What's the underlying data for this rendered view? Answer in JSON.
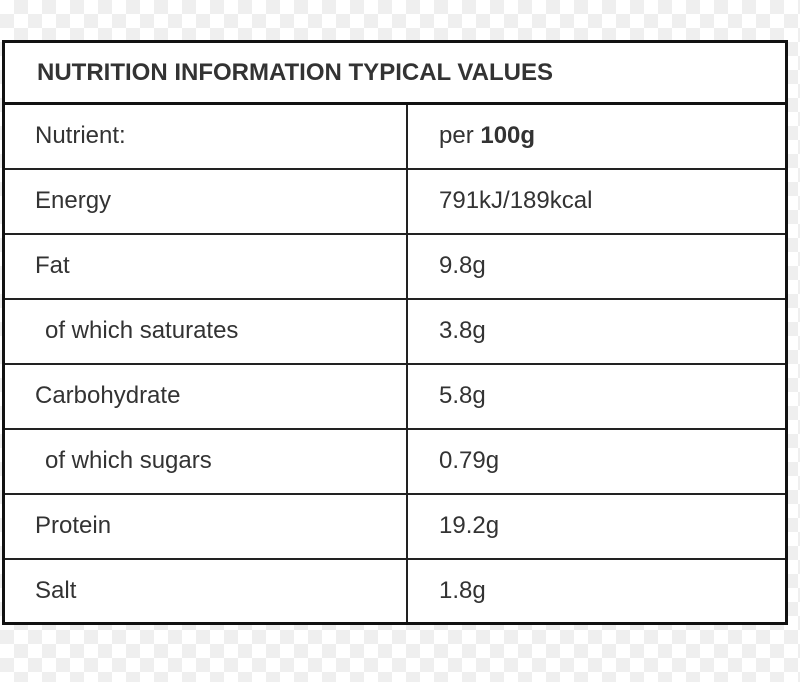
{
  "title": "NUTRITION INFORMATION TYPICAL VALUES",
  "header": {
    "nutrient": "Nutrient:",
    "per_prefix": "per",
    "per_amount": "100g"
  },
  "rows": [
    {
      "nutrient": "Energy",
      "value": "791kJ/189kcal",
      "indent": false
    },
    {
      "nutrient": "Fat",
      "value": "9.8g",
      "indent": false
    },
    {
      "nutrient": "of which saturates",
      "value": "3.8g",
      "indent": true
    },
    {
      "nutrient": "Carbohydrate",
      "value": "5.8g",
      "indent": false
    },
    {
      "nutrient": "of which sugars",
      "value": "0.79g",
      "indent": true
    },
    {
      "nutrient": "Protein",
      "value": "19.2g",
      "indent": false
    },
    {
      "nutrient": "Salt",
      "value": "1.8g",
      "indent": false
    }
  ]
}
